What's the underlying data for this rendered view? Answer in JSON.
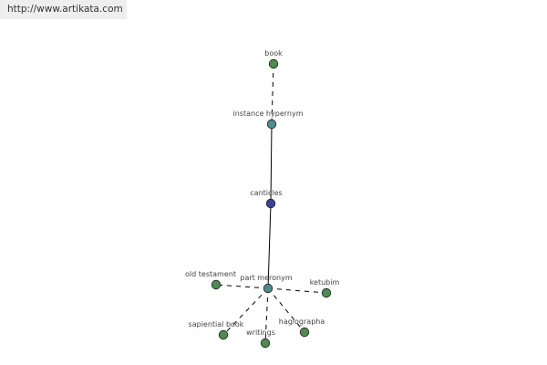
{
  "header": {
    "url": "http://www.artikata.com"
  },
  "colors": {
    "leaf_node": "#4f8a4f",
    "relation_node": "#4f8c8c",
    "focus_node": "#3f3f9c",
    "edge": "#000000",
    "node_stroke": "#222222"
  },
  "graph": {
    "nodes": [
      {
        "id": "book",
        "label": "book",
        "kind": "leaf"
      },
      {
        "id": "instance-hypernym",
        "label": "instance hypernym",
        "kind": "relation"
      },
      {
        "id": "canticles",
        "label": "canticles",
        "kind": "focus"
      },
      {
        "id": "part-meronym",
        "label": "part meronym",
        "kind": "relation"
      },
      {
        "id": "old-testament",
        "label": "old testament",
        "kind": "leaf"
      },
      {
        "id": "ketubim",
        "label": "ketubim",
        "kind": "leaf"
      },
      {
        "id": "sapiential-book",
        "label": "sapiential book",
        "kind": "leaf"
      },
      {
        "id": "writings",
        "label": "writings",
        "kind": "leaf"
      },
      {
        "id": "hagiographa",
        "label": "hagiographa",
        "kind": "leaf"
      }
    ],
    "edges": [
      {
        "from": "book",
        "to": "instance-hypernym",
        "style": "dashed"
      },
      {
        "from": "instance-hypernym",
        "to": "canticles",
        "style": "solid"
      },
      {
        "from": "canticles",
        "to": "part-meronym",
        "style": "solid"
      },
      {
        "from": "part-meronym",
        "to": "old-testament",
        "style": "dashed"
      },
      {
        "from": "part-meronym",
        "to": "ketubim",
        "style": "dashed"
      },
      {
        "from": "part-meronym",
        "to": "sapiential-book",
        "style": "dashed"
      },
      {
        "from": "part-meronym",
        "to": "writings",
        "style": "dashed"
      },
      {
        "from": "part-meronym",
        "to": "hagiographa",
        "style": "dashed"
      }
    ]
  }
}
